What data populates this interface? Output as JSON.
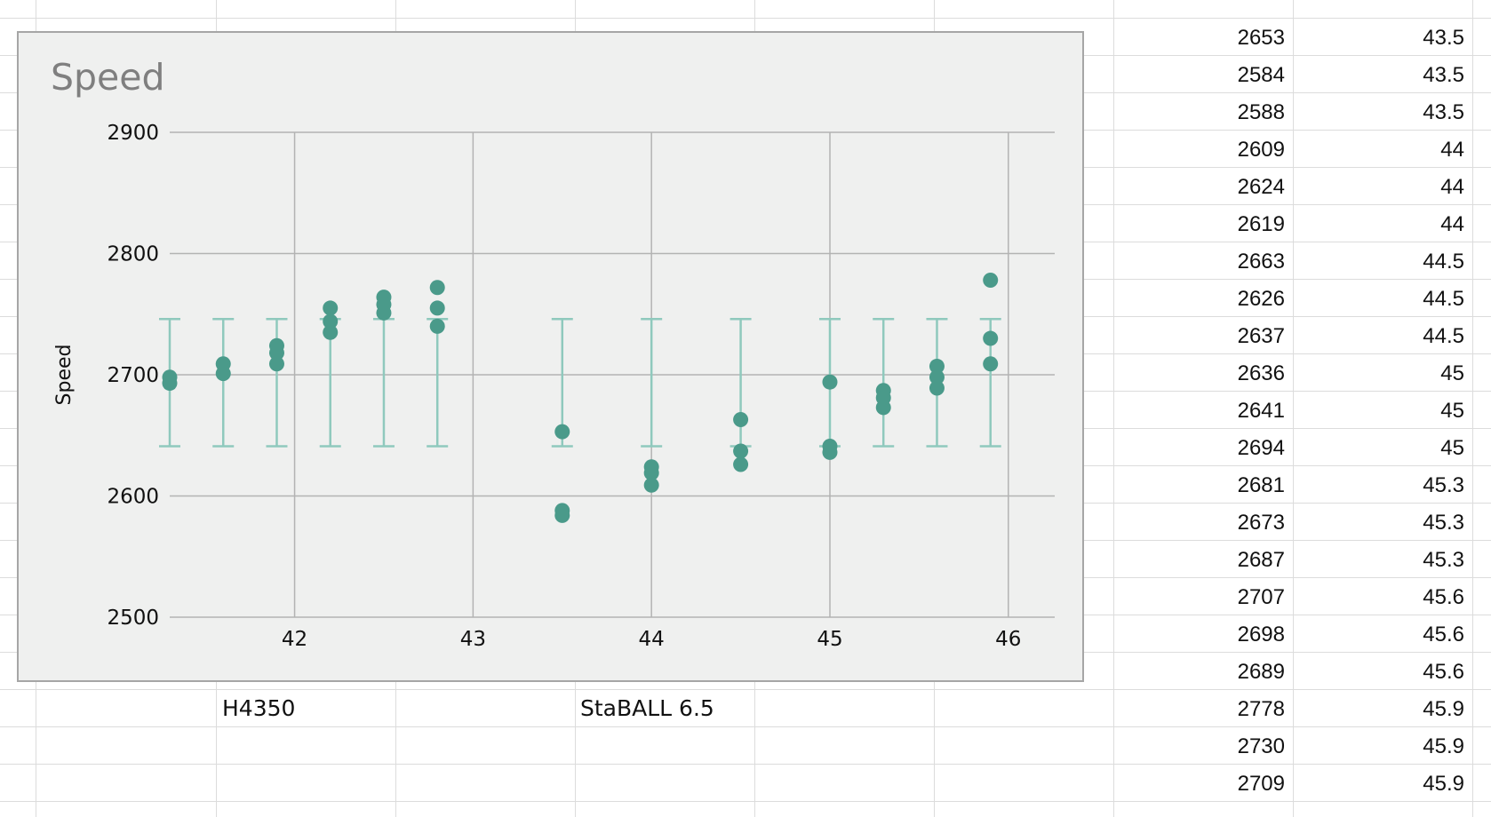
{
  "sheet": {
    "labels": [
      {
        "name": "label-h4350",
        "text": "H4350"
      },
      {
        "name": "label-staball",
        "text": "StaBALL 6.5"
      }
    ],
    "table": {
      "rows": [
        {
          "speed": "2653",
          "charge": "43.5"
        },
        {
          "speed": "2584",
          "charge": "43.5"
        },
        {
          "speed": "2588",
          "charge": "43.5"
        },
        {
          "speed": "2609",
          "charge": "44"
        },
        {
          "speed": "2624",
          "charge": "44"
        },
        {
          "speed": "2619",
          "charge": "44"
        },
        {
          "speed": "2663",
          "charge": "44.5"
        },
        {
          "speed": "2626",
          "charge": "44.5"
        },
        {
          "speed": "2637",
          "charge": "44.5"
        },
        {
          "speed": "2636",
          "charge": "45"
        },
        {
          "speed": "2641",
          "charge": "45"
        },
        {
          "speed": "2694",
          "charge": "45"
        },
        {
          "speed": "2681",
          "charge": "45.3"
        },
        {
          "speed": "2673",
          "charge": "45.3"
        },
        {
          "speed": "2687",
          "charge": "45.3"
        },
        {
          "speed": "2707",
          "charge": "45.6"
        },
        {
          "speed": "2698",
          "charge": "45.6"
        },
        {
          "speed": "2689",
          "charge": "45.6"
        },
        {
          "speed": "2778",
          "charge": "45.9"
        },
        {
          "speed": "2730",
          "charge": "45.9"
        },
        {
          "speed": "2709",
          "charge": "45.9"
        }
      ]
    }
  },
  "colors": {
    "point": "#4a9a8a",
    "error_bar": "#8fc9bd",
    "chart_bg": "#eff0ef",
    "gridline": "#b3b3b3",
    "title": "#7f7f7f"
  },
  "chart_data": {
    "type": "scatter",
    "title": "Speed",
    "ylabel": "Speed",
    "xlabel": "",
    "xlim": [
      41.3,
      46.26
    ],
    "ylim": [
      2500,
      2900
    ],
    "x_ticks": [
      42,
      43,
      44,
      45,
      46
    ],
    "y_ticks": [
      2500,
      2600,
      2700,
      2800,
      2900
    ],
    "grid": true,
    "error_bars": {
      "x": [
        41.3,
        41.6,
        41.9,
        42.2,
        42.5,
        42.8,
        43.5,
        44.0,
        44.5,
        45.0,
        45.3,
        45.6,
        45.9
      ],
      "low": 2641,
      "high": 2746
    },
    "series": [
      {
        "points": [
          [
            41.3,
            2698
          ],
          [
            41.3,
            2693
          ],
          [
            41.6,
            2709
          ],
          [
            41.6,
            2701
          ],
          [
            41.9,
            2724
          ],
          [
            41.9,
            2718
          ],
          [
            41.9,
            2709
          ],
          [
            42.2,
            2755
          ],
          [
            42.2,
            2744
          ],
          [
            42.2,
            2735
          ],
          [
            42.5,
            2764
          ],
          [
            42.5,
            2758
          ],
          [
            42.5,
            2751
          ],
          [
            42.8,
            2772
          ],
          [
            42.8,
            2755
          ],
          [
            42.8,
            2740
          ],
          [
            43.5,
            2653
          ],
          [
            43.5,
            2588
          ],
          [
            43.5,
            2584
          ],
          [
            44.0,
            2624
          ],
          [
            44.0,
            2619
          ],
          [
            44.0,
            2609
          ],
          [
            44.5,
            2663
          ],
          [
            44.5,
            2637
          ],
          [
            44.5,
            2626
          ],
          [
            45.0,
            2694
          ],
          [
            45.0,
            2641
          ],
          [
            45.0,
            2636
          ],
          [
            45.3,
            2687
          ],
          [
            45.3,
            2681
          ],
          [
            45.3,
            2673
          ],
          [
            45.6,
            2707
          ],
          [
            45.6,
            2698
          ],
          [
            45.6,
            2689
          ],
          [
            45.9,
            2778
          ],
          [
            45.9,
            2730
          ],
          [
            45.9,
            2709
          ]
        ]
      }
    ]
  }
}
